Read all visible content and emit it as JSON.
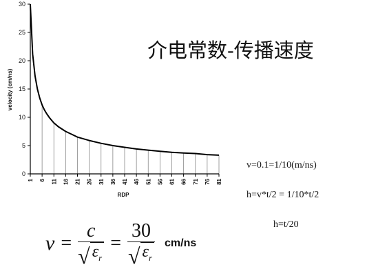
{
  "title": "介电常数-传播速度",
  "notes": {
    "line1": "v=0.1=1/10(m/ns)",
    "line2": "h=v*t/2 = 1/10*t/2",
    "line3": "h=t/20"
  },
  "formula": {
    "lhs": "v",
    "eq1": "=",
    "num1": "c",
    "sqrt1": "√",
    "den1_symbol": "ε",
    "den1_sub": "r",
    "eq2": "=",
    "num2": "30",
    "sqrt2": "√",
    "den2_symbol": "ε",
    "den2_sub": "r",
    "unit": "cm/ns"
  },
  "chart_data": {
    "type": "line",
    "xlabel": "RDP",
    "ylabel": "velocity (cm/ns)",
    "x_ticks": [
      1,
      6,
      11,
      16,
      21,
      26,
      31,
      36,
      41,
      46,
      51,
      56,
      61,
      66,
      71,
      76,
      81
    ],
    "y_ticks": [
      0,
      5,
      10,
      15,
      20,
      25,
      30
    ],
    "ylim": [
      0,
      30
    ],
    "xlim": [
      1,
      81
    ],
    "drop_lines": true,
    "series": [
      {
        "x": [
          1,
          2,
          3,
          4,
          5,
          6,
          7,
          8,
          9,
          10,
          11,
          13,
          16,
          19,
          21,
          26,
          31,
          36,
          41,
          46,
          51,
          56,
          61,
          66,
          71,
          76,
          81
        ],
        "values": [
          30,
          21.2,
          17.3,
          15.0,
          13.4,
          12.2,
          11.3,
          10.6,
          10.0,
          9.5,
          9.0,
          8.3,
          7.5,
          6.9,
          6.5,
          5.9,
          5.4,
          5.0,
          4.7,
          4.4,
          4.2,
          4.0,
          3.8,
          3.7,
          3.6,
          3.4,
          3.3
        ]
      }
    ]
  }
}
